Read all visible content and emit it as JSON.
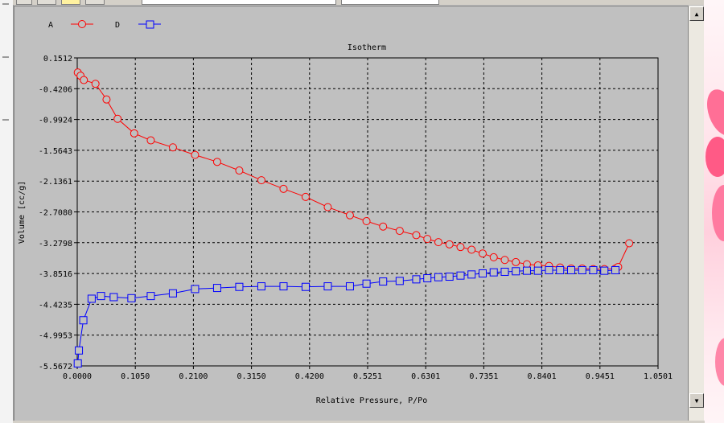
{
  "chart_data": {
    "type": "line",
    "title": "Isotherm",
    "xlabel": "Relative Pressure, P/Po",
    "ylabel": "Volume [cc/g]",
    "xlim": [
      0.0,
      1.0501
    ],
    "ylim": [
      -5.5672,
      0.1512
    ],
    "x_ticks": [
      "0.0000",
      "0.1050",
      "0.2100",
      "0.3150",
      "0.4200",
      "0.5251",
      "0.6301",
      "0.7351",
      "0.8401",
      "0.9451",
      "1.0501"
    ],
    "y_ticks": [
      "0.1512",
      "-0.4206",
      "-0.9924",
      "-1.5643",
      "-2.1361",
      "-2.7080",
      "-3.2798",
      "-3.8516",
      "-4.4235",
      "-4.9953",
      "-5.5672"
    ],
    "grid": true,
    "legend_position": "top-left",
    "series": [
      {
        "name": "A",
        "color": "#ff0000",
        "marker": "circle",
        "points": [
          [
            0.001,
            -0.12
          ],
          [
            0.006,
            -0.18
          ],
          [
            0.012,
            -0.26
          ],
          [
            0.033,
            -0.33
          ],
          [
            0.053,
            -0.62
          ],
          [
            0.073,
            -0.98
          ],
          [
            0.103,
            -1.25
          ],
          [
            0.133,
            -1.38
          ],
          [
            0.173,
            -1.51
          ],
          [
            0.213,
            -1.65
          ],
          [
            0.253,
            -1.78
          ],
          [
            0.293,
            -1.94
          ],
          [
            0.333,
            -2.12
          ],
          [
            0.373,
            -2.28
          ],
          [
            0.413,
            -2.43
          ],
          [
            0.453,
            -2.62
          ],
          [
            0.493,
            -2.77
          ],
          [
            0.523,
            -2.88
          ],
          [
            0.553,
            -2.98
          ],
          [
            0.583,
            -3.06
          ],
          [
            0.613,
            -3.14
          ],
          [
            0.633,
            -3.21
          ],
          [
            0.653,
            -3.27
          ],
          [
            0.673,
            -3.31
          ],
          [
            0.693,
            -3.36
          ],
          [
            0.713,
            -3.41
          ],
          [
            0.733,
            -3.48
          ],
          [
            0.753,
            -3.55
          ],
          [
            0.773,
            -3.6
          ],
          [
            0.793,
            -3.64
          ],
          [
            0.813,
            -3.68
          ],
          [
            0.833,
            -3.7
          ],
          [
            0.853,
            -3.71
          ],
          [
            0.873,
            -3.74
          ],
          [
            0.893,
            -3.76
          ],
          [
            0.913,
            -3.76
          ],
          [
            0.933,
            -3.77
          ],
          [
            0.953,
            -3.77
          ],
          [
            0.973,
            -3.76
          ],
          [
            0.978,
            -3.73
          ],
          [
            0.998,
            -3.29
          ]
        ]
      },
      {
        "name": "D",
        "color": "#0000ff",
        "marker": "square",
        "points": [
          [
            0.001,
            -5.52
          ],
          [
            0.003,
            -5.28
          ],
          [
            0.011,
            -4.72
          ],
          [
            0.026,
            -4.32
          ],
          [
            0.043,
            -4.27
          ],
          [
            0.066,
            -4.29
          ],
          [
            0.098,
            -4.31
          ],
          [
            0.133,
            -4.27
          ],
          [
            0.173,
            -4.22
          ],
          [
            0.213,
            -4.14
          ],
          [
            0.253,
            -4.12
          ],
          [
            0.293,
            -4.1
          ],
          [
            0.333,
            -4.09
          ],
          [
            0.373,
            -4.09
          ],
          [
            0.413,
            -4.1
          ],
          [
            0.453,
            -4.09
          ],
          [
            0.493,
            -4.09
          ],
          [
            0.523,
            -4.04
          ],
          [
            0.553,
            -4.0
          ],
          [
            0.583,
            -3.99
          ],
          [
            0.613,
            -3.96
          ],
          [
            0.633,
            -3.94
          ],
          [
            0.653,
            -3.92
          ],
          [
            0.673,
            -3.91
          ],
          [
            0.693,
            -3.89
          ],
          [
            0.713,
            -3.87
          ],
          [
            0.733,
            -3.85
          ],
          [
            0.753,
            -3.83
          ],
          [
            0.773,
            -3.82
          ],
          [
            0.793,
            -3.81
          ],
          [
            0.813,
            -3.8
          ],
          [
            0.833,
            -3.8
          ],
          [
            0.853,
            -3.79
          ],
          [
            0.873,
            -3.79
          ],
          [
            0.893,
            -3.79
          ],
          [
            0.913,
            -3.79
          ],
          [
            0.933,
            -3.79
          ],
          [
            0.953,
            -3.8
          ],
          [
            0.973,
            -3.79
          ]
        ]
      }
    ]
  },
  "legend": {
    "items": [
      {
        "label": "A",
        "color": "#ff0000",
        "marker": "circle"
      },
      {
        "label": "D",
        "color": "#0000ff",
        "marker": "square"
      }
    ]
  },
  "scrollbar": {
    "up_icon": "up-arrow-icon",
    "down_icon": "down-arrow-icon"
  }
}
